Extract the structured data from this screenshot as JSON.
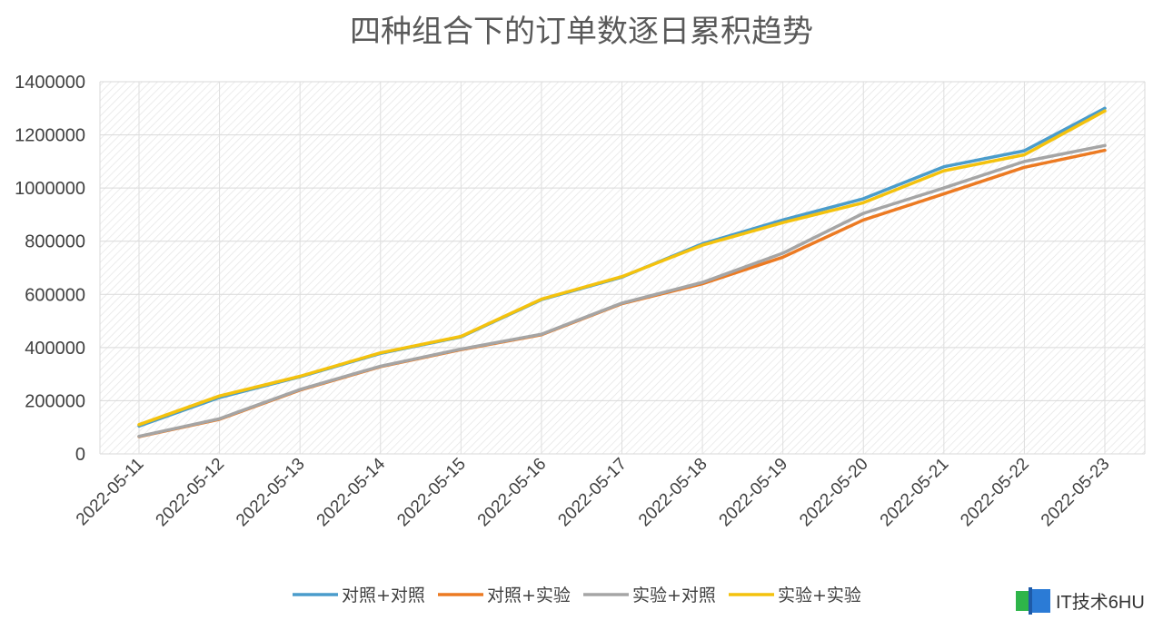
{
  "chart_data": {
    "type": "line",
    "title": "四种组合下的订单数逐日累积趋势",
    "xlabel": "",
    "ylabel": "",
    "ylim": [
      0,
      1400000
    ],
    "yticks": [
      "0",
      "200000",
      "400000",
      "600000",
      "800000",
      "1000000",
      "1200000",
      "1400000"
    ],
    "categories": [
      "2022-05-11",
      "2022-05-12",
      "2022-05-13",
      "2022-05-14",
      "2022-05-15",
      "2022-05-16",
      "2022-05-17",
      "2022-05-18",
      "2022-05-19",
      "2022-05-20",
      "2022-05-21",
      "2022-05-22",
      "2022-05-23"
    ],
    "grid": true,
    "legend_position": "bottom",
    "series": [
      {
        "name": "对照+对照",
        "color": "#4a9ccb",
        "values": [
          105000,
          212000,
          290000,
          378000,
          440000,
          580000,
          665000,
          790000,
          880000,
          960000,
          1080000,
          1140000,
          1300000
        ]
      },
      {
        "name": "对照+实验",
        "color": "#ec7a22",
        "values": [
          65000,
          130000,
          240000,
          328000,
          392000,
          448000,
          565000,
          640000,
          740000,
          880000,
          978000,
          1078000,
          1142000
        ]
      },
      {
        "name": "实验+对照",
        "color": "#a5a5a5",
        "values": [
          66000,
          132000,
          242000,
          330000,
          394000,
          450000,
          567000,
          645000,
          755000,
          905000,
          1000000,
          1100000,
          1160000
        ]
      },
      {
        "name": "实验+实验",
        "color": "#f4c20d",
        "values": [
          110000,
          218000,
          292000,
          380000,
          442000,
          582000,
          667000,
          785000,
          870000,
          945000,
          1065000,
          1125000,
          1290000
        ]
      }
    ]
  },
  "watermark": {
    "text": "IT技术6HU",
    "icon": "book-logo-icon"
  }
}
